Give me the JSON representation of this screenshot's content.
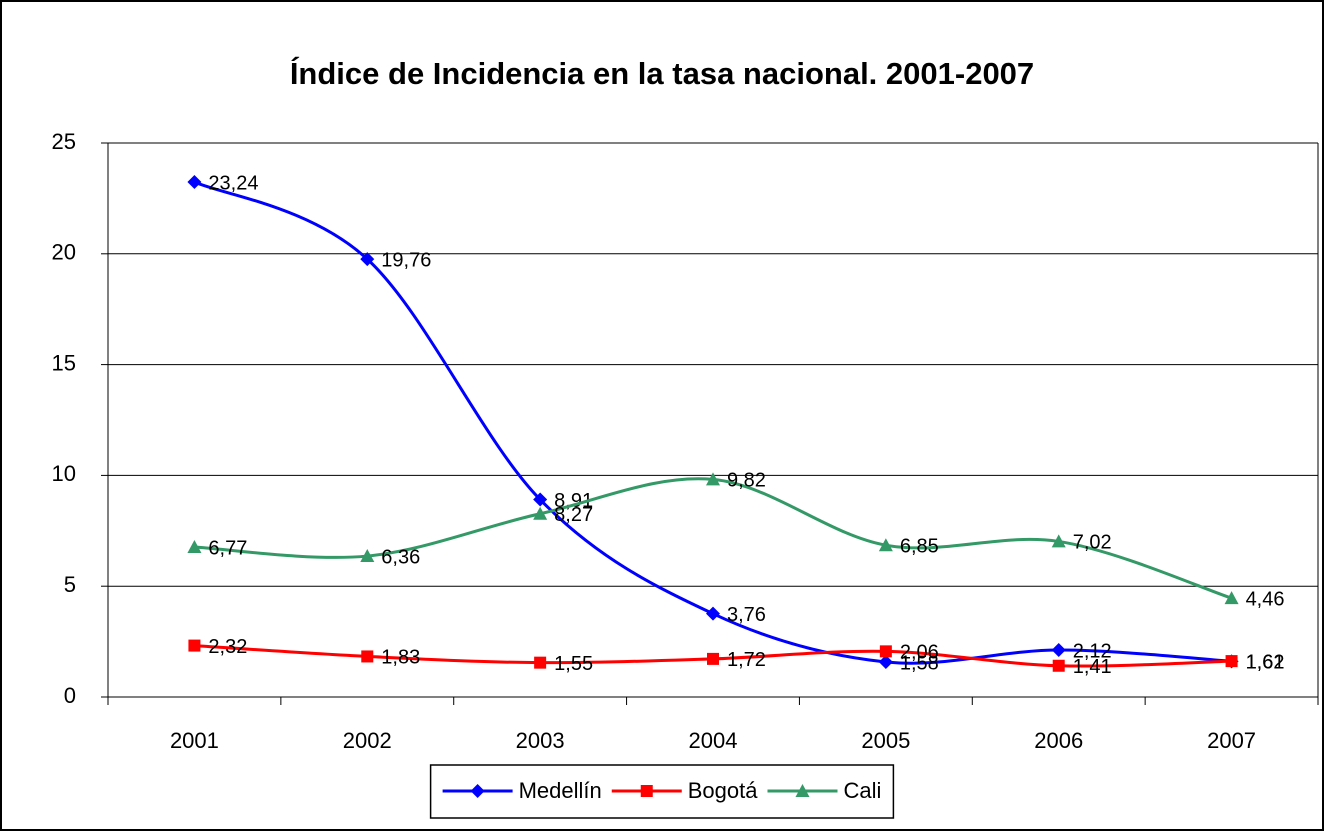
{
  "chart_data": {
    "type": "line",
    "title": "Índice de Incidencia en la tasa nacional. 2001-2007",
    "categories": [
      "2001",
      "2002",
      "2003",
      "2004",
      "2005",
      "2006",
      "2007"
    ],
    "series": [
      {
        "name": "Medellín",
        "color": "#0000ff",
        "marker": "diamond",
        "values": [
          23.24,
          19.76,
          8.91,
          3.76,
          1.58,
          2.12,
          1.61
        ],
        "value_labels": [
          "23,24",
          "19,76",
          "8,91",
          "3,76",
          "1,58",
          "2,12",
          "1,61"
        ]
      },
      {
        "name": "Bogotá",
        "color": "#ff0000",
        "marker": "square",
        "values": [
          2.32,
          1.83,
          1.55,
          1.72,
          2.06,
          1.41,
          1.62
        ],
        "value_labels": [
          "2,32",
          "1,83",
          "1,55",
          "1,72",
          "2,06",
          "1,41",
          "1,62"
        ]
      },
      {
        "name": "Cali",
        "color": "#339966",
        "marker": "triangle",
        "values": [
          6.77,
          6.36,
          8.27,
          9.82,
          6.85,
          7.02,
          4.46
        ],
        "value_labels": [
          "6,77",
          "6,36",
          "8,27",
          "9,82",
          "6,85",
          "7,02",
          "4,46"
        ]
      }
    ],
    "ylim": [
      0,
      25
    ],
    "yticks": [
      0,
      5,
      10,
      15,
      20,
      25
    ],
    "grid": true,
    "smooth": true,
    "legend": "bottom"
  }
}
